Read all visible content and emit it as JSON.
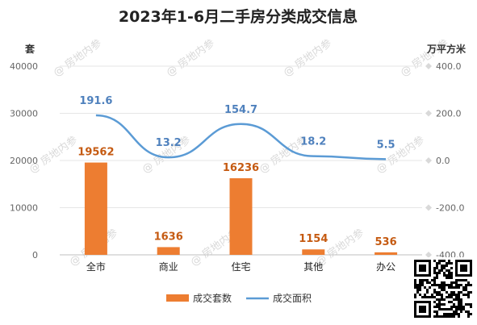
{
  "chart_data": {
    "type": "bar",
    "title": "2023年1-6月二手房分类成交信息",
    "categories": [
      "全市",
      "商业",
      "住宅",
      "其他",
      "办公"
    ],
    "series": [
      {
        "name": "成交套数",
        "type": "bar",
        "axis": "left",
        "values": [
          19562,
          1636,
          16236,
          1154,
          536
        ],
        "color": "#ed7d31",
        "label_color": "#c55a11"
      },
      {
        "name": "成交面积",
        "type": "line",
        "axis": "right",
        "smooth": true,
        "values": [
          191.6,
          13.2,
          154.7,
          18.2,
          5.5
        ],
        "color": "#5b9bd5",
        "label_color": "#4f81bd"
      }
    ],
    "y_left": {
      "label": "套",
      "ylim": [
        0,
        40000
      ],
      "ticks": [
        "0",
        "10000",
        "20000",
        "30000",
        "40000"
      ],
      "tick_values": [
        0,
        10000,
        20000,
        30000,
        40000
      ]
    },
    "y_right": {
      "label": "万平方米",
      "ylim": [
        -400,
        400
      ],
      "ticks": [
        "-400.0",
        "-200.0",
        "0.0",
        "200.0",
        "400.0"
      ],
      "tick_values": [
        -400,
        -200,
        0,
        200,
        400
      ]
    },
    "legend_position": "bottom",
    "grid": true
  },
  "watermark": {
    "text": "@ 房地内参"
  },
  "qr_code": {
    "icon": "qr-code-icon"
  }
}
